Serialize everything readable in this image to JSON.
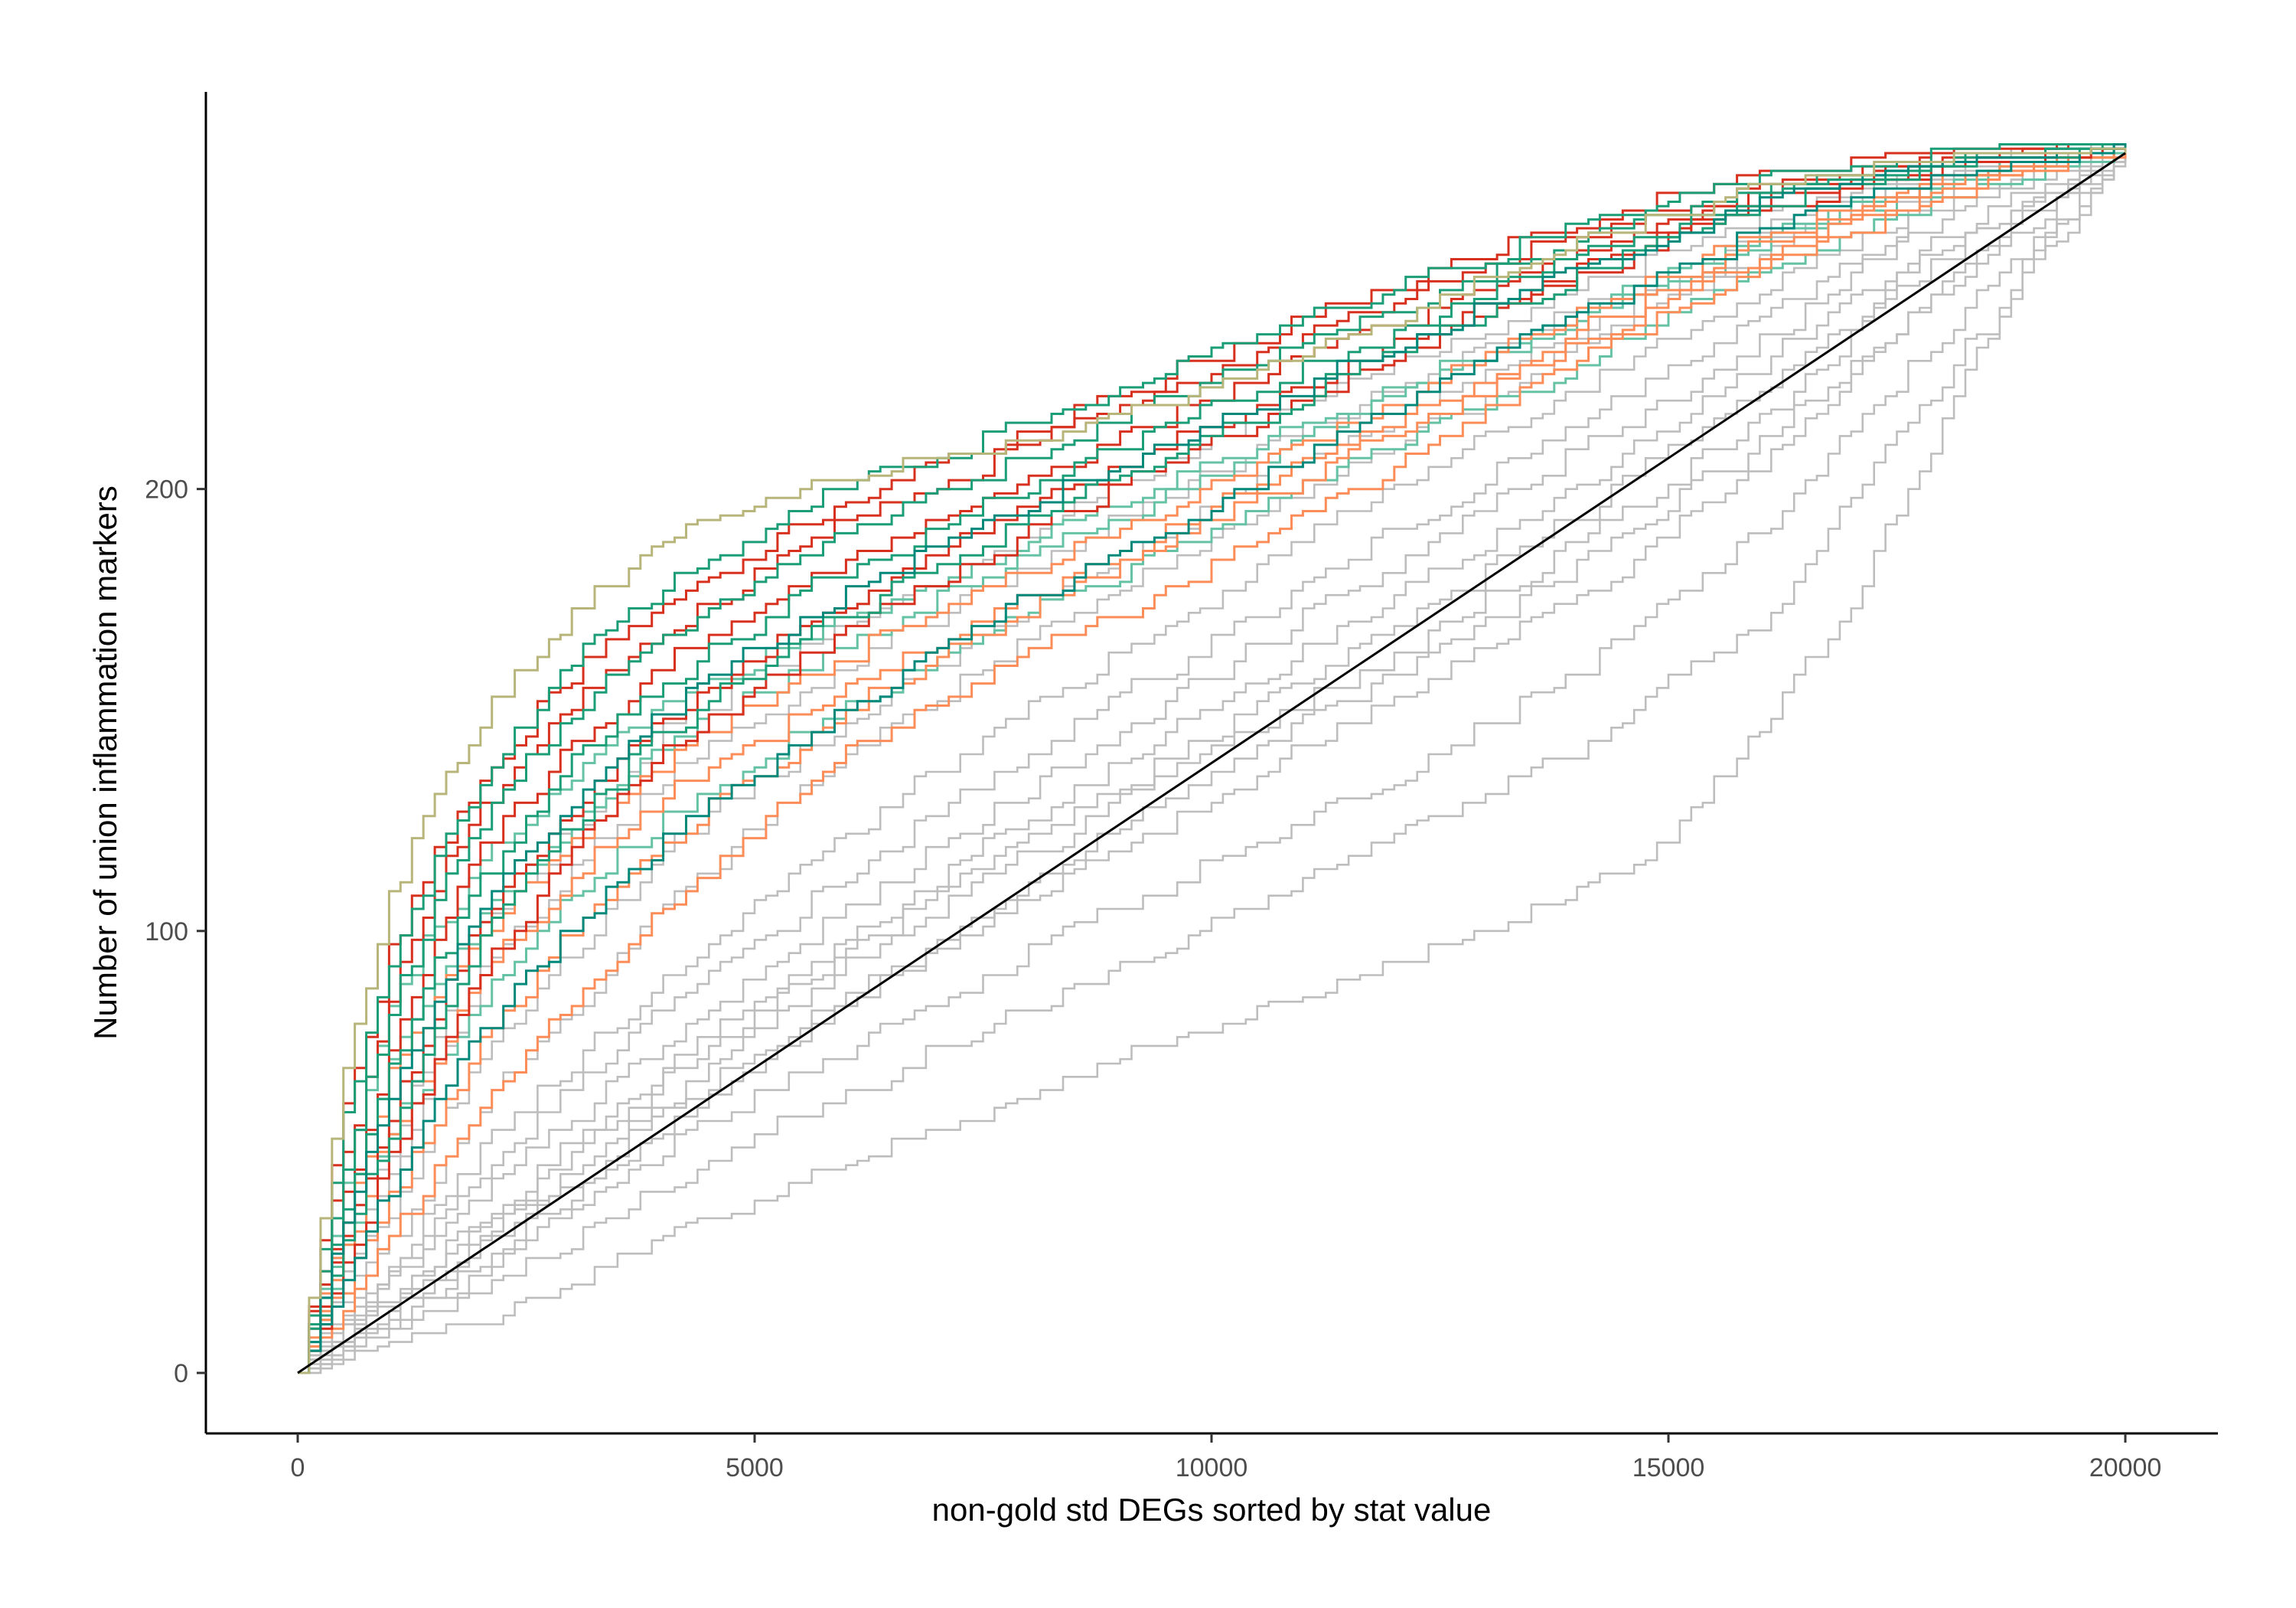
{
  "chart_data": {
    "type": "line",
    "title": "",
    "xlabel": "non-gold std DEGs sorted by stat value",
    "ylabel": "Number of union inflammation markers",
    "xlim": [
      -1000,
      21000
    ],
    "ylim": [
      -13,
      290
    ],
    "x_ticks": [
      0,
      5000,
      10000,
      15000,
      20000
    ],
    "x_tick_labels": [
      "0",
      "5000",
      "10000",
      "15000",
      "20000"
    ],
    "y_ticks": [
      0,
      100,
      200
    ],
    "y_tick_labels": [
      "0",
      "100",
      "200"
    ],
    "grid": false,
    "legend": "none",
    "x_end": 20000,
    "y_end": 276,
    "colors": {
      "red": "#d7301f",
      "teal": "#1b9e77",
      "dark_teal": "#00897b",
      "light_teal": "#66c2a5",
      "orange": "#fc8d59",
      "olive": "#b8b57a",
      "gray": "#bdbdbd",
      "black": "#000000"
    },
    "series": [
      {
        "color": "gray",
        "x": [
          0,
          2000,
          4000,
          6000,
          8000,
          10000,
          12000,
          14000,
          15000,
          16000,
          17000,
          18000,
          19000,
          20000
        ],
        "y": [
          0,
          10,
          30,
          47,
          63,
          78,
          92,
          108,
          120,
          145,
          175,
          215,
          255,
          276
        ]
      },
      {
        "color": "gray",
        "x": [
          0,
          2000,
          4000,
          6000,
          8000,
          10000,
          12000,
          14000,
          16000,
          18000,
          20000
        ],
        "y": [
          0,
          18,
          42,
          63,
          82,
          101,
          120,
          141,
          170,
          225,
          276
        ]
      },
      {
        "color": "gray",
        "x": [
          0,
          2000,
          4000,
          6000,
          8000,
          10000,
          12000,
          14000,
          16000,
          18000,
          20000
        ],
        "y": [
          0,
          22,
          50,
          73,
          95,
          115,
          135,
          158,
          190,
          235,
          276
        ]
      },
      {
        "color": "gray",
        "x": [
          0,
          2000,
          4000,
          6000,
          8000,
          10000,
          12000,
          14000,
          16000,
          18000,
          20000
        ],
        "y": [
          0,
          28,
          58,
          85,
          108,
          130,
          152,
          175,
          205,
          248,
          276
        ]
      },
      {
        "color": "gray",
        "x": [
          0,
          2000,
          4000,
          6000,
          8000,
          10000,
          12000,
          14000,
          16000,
          18000,
          20000
        ],
        "y": [
          0,
          30,
          62,
          92,
          117,
          140,
          162,
          188,
          215,
          253,
          276
        ]
      },
      {
        "color": "gray",
        "x": [
          0,
          2000,
          4000,
          6000,
          8000,
          10000,
          12000,
          14000,
          16000,
          18000,
          20000
        ],
        "y": [
          0,
          35,
          68,
          98,
          125,
          150,
          175,
          200,
          228,
          258,
          276
        ]
      },
      {
        "color": "gray",
        "x": [
          0,
          2000,
          4000,
          6000,
          8000,
          10000,
          12000,
          14000,
          16000,
          18000,
          20000
        ],
        "y": [
          0,
          40,
          74,
          104,
          132,
          158,
          183,
          208,
          233,
          262,
          276
        ]
      },
      {
        "color": "gray",
        "x": [
          0,
          2000,
          4000,
          6000,
          8000,
          10000,
          12000,
          14000,
          16000,
          18000,
          20000
        ],
        "y": [
          0,
          26,
          55,
          82,
          110,
          135,
          158,
          182,
          210,
          245,
          276
        ]
      },
      {
        "color": "gray",
        "x": [
          0,
          2000,
          4000,
          6000,
          8000,
          10000,
          12000,
          14000,
          16000,
          18000,
          20000
        ],
        "y": [
          0,
          33,
          66,
          95,
          120,
          145,
          168,
          194,
          222,
          255,
          276
        ]
      },
      {
        "color": "gray",
        "x": [
          0,
          2000,
          4000,
          6000,
          8000,
          10000,
          12000,
          14000,
          16000,
          18000,
          20000
        ],
        "y": [
          0,
          45,
          82,
          112,
          140,
          165,
          190,
          214,
          238,
          265,
          276
        ]
      },
      {
        "color": "gray",
        "x": [
          0,
          2000,
          4000,
          6000,
          8000,
          10000,
          12000,
          14000,
          16000,
          18000,
          20000
        ],
        "y": [
          0,
          50,
          90,
          122,
          150,
          175,
          200,
          222,
          244,
          266,
          276
        ]
      },
      {
        "color": "gray",
        "x": [
          0,
          2000,
          4000,
          6000,
          8000,
          10000,
          12000,
          14000,
          16000,
          18000,
          20000
        ],
        "y": [
          0,
          60,
          105,
          140,
          165,
          188,
          210,
          232,
          252,
          270,
          276
        ]
      },
      {
        "color": "gray",
        "x": [
          0,
          2000,
          4000,
          6000,
          8000,
          10000,
          12000,
          14000,
          16000,
          18000,
          20000
        ],
        "y": [
          0,
          72,
          118,
          148,
          172,
          196,
          216,
          236,
          255,
          271,
          276
        ]
      },
      {
        "color": "gray",
        "x": [
          0,
          2000,
          4000,
          6000,
          8000,
          10000,
          12000,
          14000,
          16000,
          18000,
          20000
        ],
        "y": [
          0,
          90,
          135,
          160,
          182,
          203,
          222,
          240,
          258,
          272,
          276
        ]
      },
      {
        "color": "gray",
        "x": [
          0,
          2000,
          4000,
          6000,
          8000,
          10000,
          12000,
          14000,
          16000,
          18000,
          20000
        ],
        "y": [
          0,
          100,
          145,
          170,
          190,
          210,
          228,
          245,
          261,
          273,
          276
        ]
      },
      {
        "color": "light_teal",
        "x": [
          0,
          1000,
          2000,
          3000,
          4000,
          6000,
          8000,
          10000,
          12000,
          14000,
          16000,
          18000,
          20000
        ],
        "y": [
          0,
          55,
          85,
          108,
          125,
          150,
          172,
          190,
          210,
          228,
          248,
          265,
          276
        ]
      },
      {
        "color": "light_teal",
        "x": [
          0,
          1000,
          2000,
          3000,
          4000,
          6000,
          8000,
          10000,
          12000,
          14000,
          16000,
          18000,
          20000
        ],
        "y": [
          0,
          70,
          102,
          125,
          142,
          165,
          185,
          202,
          220,
          238,
          255,
          268,
          276
        ]
      },
      {
        "color": "light_teal",
        "x": [
          0,
          1000,
          2000,
          3000,
          4000,
          6000,
          8000,
          10000,
          12000,
          14000,
          16000,
          18000,
          20000
        ],
        "y": [
          0,
          85,
          115,
          135,
          150,
          170,
          188,
          205,
          222,
          240,
          256,
          269,
          276
        ]
      },
      {
        "color": "orange",
        "x": [
          0,
          1000,
          2000,
          3000,
          4000,
          6000,
          8000,
          10000,
          12000,
          14000,
          16000,
          18000,
          20000
        ],
        "y": [
          0,
          30,
          62,
          85,
          105,
          140,
          162,
          182,
          205,
          228,
          250,
          266,
          276
        ]
      },
      {
        "color": "orange",
        "x": [
          0,
          1000,
          2000,
          3000,
          4000,
          6000,
          8000,
          10000,
          12000,
          14000,
          16000,
          18000,
          20000
        ],
        "y": [
          0,
          40,
          75,
          100,
          120,
          150,
          172,
          192,
          212,
          232,
          252,
          267,
          276
        ]
      },
      {
        "color": "orange",
        "x": [
          0,
          1000,
          2000,
          3000,
          4000,
          6000,
          8000,
          10000,
          12000,
          14000,
          16000,
          18000,
          20000
        ],
        "y": [
          0,
          55,
          90,
          112,
          130,
          155,
          175,
          195,
          215,
          235,
          255,
          268,
          276
        ]
      },
      {
        "color": "orange",
        "x": [
          0,
          1000,
          2000,
          3000,
          4000,
          6000,
          8000,
          10000,
          12000,
          14000,
          16000,
          18000,
          20000
        ],
        "y": [
          0,
          68,
          100,
          120,
          138,
          162,
          182,
          200,
          220,
          240,
          257,
          269,
          276
        ]
      },
      {
        "color": "red",
        "x": [
          0,
          500,
          1000,
          1500,
          2000,
          3000,
          4000,
          6000,
          8000,
          10000,
          12000,
          14000,
          16000,
          18000,
          20000
        ],
        "y": [
          0,
          60,
          95,
          118,
          135,
          158,
          175,
          197,
          212,
          230,
          245,
          260,
          270,
          275,
          276
        ]
      },
      {
        "color": "red",
        "x": [
          0,
          500,
          1000,
          1500,
          2000,
          3000,
          4000,
          6000,
          8000,
          10000,
          12000,
          14000,
          16000,
          18000,
          20000
        ],
        "y": [
          0,
          50,
          85,
          110,
          128,
          152,
          168,
          192,
          210,
          226,
          242,
          257,
          268,
          274,
          276
        ]
      },
      {
        "color": "red",
        "x": [
          0,
          500,
          1000,
          1500,
          2000,
          3000,
          4000,
          6000,
          8000,
          10000,
          12000,
          14000,
          16000,
          18000,
          20000
        ],
        "y": [
          0,
          40,
          72,
          98,
          118,
          142,
          160,
          184,
          202,
          220,
          237,
          253,
          266,
          273,
          276
        ]
      },
      {
        "color": "red",
        "x": [
          0,
          500,
          1000,
          1500,
          2000,
          3000,
          4000,
          6000,
          8000,
          10000,
          12000,
          14000,
          16000,
          18000,
          20000
        ],
        "y": [
          0,
          32,
          58,
          82,
          102,
          128,
          148,
          175,
          195,
          214,
          232,
          250,
          264,
          272,
          276
        ]
      },
      {
        "color": "red",
        "x": [
          0,
          500,
          1000,
          1500,
          2000,
          3000,
          4000,
          6000,
          8000,
          10000,
          12000,
          14000,
          16000,
          18000,
          20000
        ],
        "y": [
          0,
          25,
          48,
          70,
          90,
          118,
          140,
          168,
          190,
          210,
          230,
          248,
          263,
          272,
          276
        ]
      },
      {
        "color": "teal",
        "x": [
          0,
          500,
          1000,
          1500,
          2000,
          3000,
          4000,
          6000,
          8000,
          10000,
          12000,
          14000,
          16000,
          18000,
          20000
        ],
        "y": [
          0,
          58,
          92,
          116,
          134,
          160,
          178,
          200,
          214,
          230,
          245,
          259,
          270,
          275,
          276
        ]
      },
      {
        "color": "teal",
        "x": [
          0,
          500,
          1000,
          1500,
          2000,
          3000,
          4000,
          6000,
          8000,
          10000,
          12000,
          14000,
          16000,
          18000,
          20000
        ],
        "y": [
          0,
          48,
          82,
          106,
          125,
          150,
          166,
          190,
          207,
          224,
          240,
          255,
          267,
          274,
          276
        ]
      },
      {
        "color": "teal",
        "x": [
          0,
          500,
          1000,
          1500,
          2000,
          3000,
          4000,
          6000,
          8000,
          10000,
          12000,
          14000,
          16000,
          18000,
          20000
        ],
        "y": [
          0,
          38,
          68,
          92,
          112,
          138,
          156,
          182,
          200,
          218,
          235,
          252,
          265,
          273,
          276
        ]
      },
      {
        "color": "teal",
        "x": [
          0,
          500,
          1000,
          1500,
          2000,
          3000,
          4000,
          6000,
          8000,
          10000,
          12000,
          14000,
          16000,
          18000,
          20000
        ],
        "y": [
          0,
          30,
          55,
          78,
          98,
          124,
          145,
          172,
          193,
          212,
          230,
          248,
          263,
          272,
          276
        ]
      },
      {
        "color": "dark_teal",
        "x": [
          0,
          500,
          1000,
          1500,
          2000,
          3000,
          4000,
          6000,
          8000,
          10000,
          12000,
          14000,
          16000,
          18000,
          20000
        ],
        "y": [
          0,
          35,
          62,
          85,
          105,
          130,
          150,
          176,
          196,
          214,
          232,
          250,
          264,
          272,
          276
        ]
      },
      {
        "color": "dark_teal",
        "x": [
          0,
          500,
          1000,
          1500,
          2000,
          3000,
          4000,
          6000,
          8000,
          10000,
          12000,
          14000,
          16000,
          18000,
          20000
        ],
        "y": [
          0,
          22,
          42,
          60,
          78,
          100,
          120,
          150,
          175,
          196,
          218,
          240,
          258,
          270,
          276
        ]
      },
      {
        "color": "olive",
        "x": [
          0,
          500,
          1000,
          1500,
          2000,
          3000,
          4000,
          5000,
          6000,
          8000,
          10000,
          12000,
          14000,
          16000,
          18000,
          20000
        ],
        "y": [
          0,
          70,
          108,
          130,
          148,
          172,
          188,
          196,
          202,
          210,
          222,
          238,
          255,
          268,
          274,
          276
        ]
      }
    ],
    "reference_line": {
      "color": "black",
      "x": [
        0,
        20000
      ],
      "y": [
        0,
        276
      ]
    }
  }
}
